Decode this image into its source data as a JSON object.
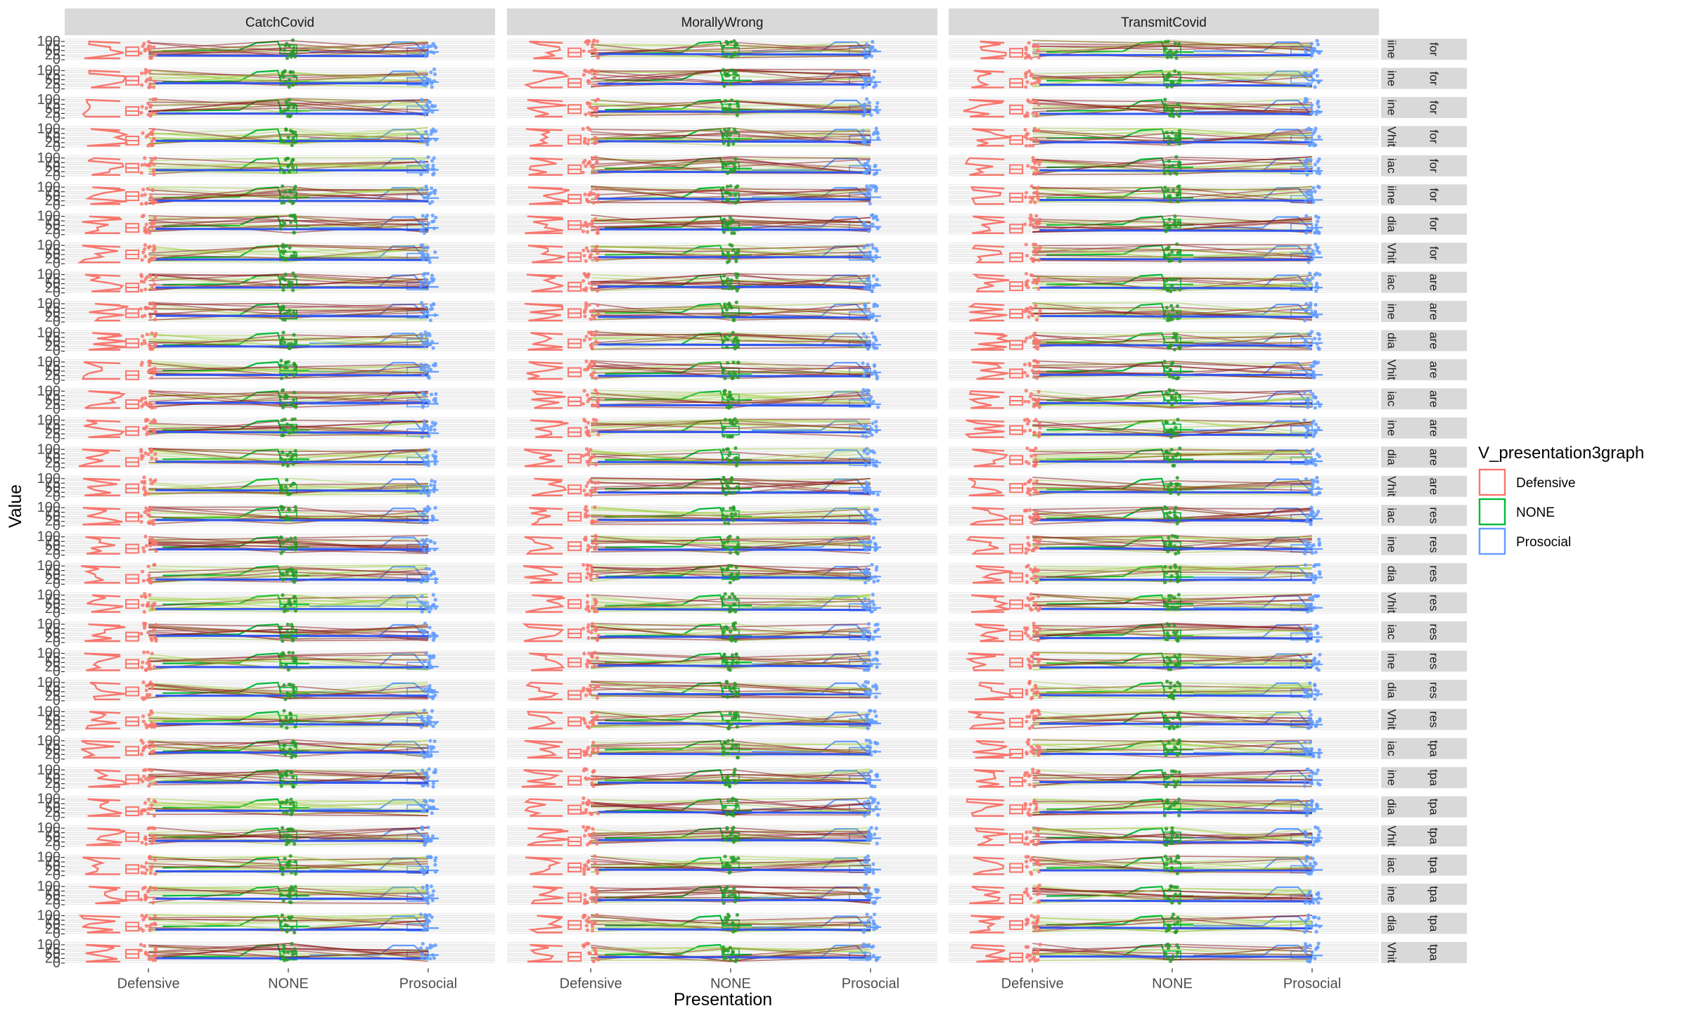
{
  "chart_data": {
    "type": "violin+box+jitter+paired-lines (faceted)",
    "facets_columns": [
      "CatchCovid",
      "MorallyWrong",
      "TransmitCovid"
    ],
    "row_count": 32,
    "row_strip_labels": [
      [
        "iine",
        "for"
      ],
      [
        "ine",
        "for"
      ],
      [
        "ine",
        "for"
      ],
      [
        "Vhit",
        "for"
      ],
      [
        "iac",
        "for"
      ],
      [
        "iine",
        "for"
      ],
      [
        "dia",
        "for"
      ],
      [
        "Vhit",
        "for"
      ],
      [
        "iac",
        "are"
      ],
      [
        "ine",
        "are"
      ],
      [
        "dia",
        "are"
      ],
      [
        "Vhit",
        "are"
      ],
      [
        "iac",
        "are"
      ],
      [
        "ine",
        "are"
      ],
      [
        "dia",
        "are"
      ],
      [
        "Vhit",
        "are"
      ],
      [
        "iac",
        "res"
      ],
      [
        "ine",
        "res"
      ],
      [
        "dia",
        "res"
      ],
      [
        "Vhit",
        "res"
      ],
      [
        "iac",
        "res"
      ],
      [
        "ine",
        "res"
      ],
      [
        "dia",
        "res"
      ],
      [
        "Vhit",
        "res"
      ],
      [
        "iac",
        "tpa"
      ],
      [
        "ine",
        "tpa"
      ],
      [
        "dia",
        "tpa"
      ],
      [
        "Vhit",
        "tpa"
      ],
      [
        "iac",
        "tpa"
      ],
      [
        "ine",
        "tpa"
      ],
      [
        "dia",
        "tpa"
      ],
      [
        "Vhit",
        "tpa"
      ]
    ],
    "categories": [
      "Defensive",
      "NONE",
      "Prosocial"
    ],
    "y_ticks": [
      "100",
      "75",
      "50",
      "25",
      "0"
    ],
    "ylim": [
      0,
      100
    ],
    "xlabel": "Presentation",
    "ylabel": "Value",
    "legend": {
      "title": "V_presentation3graph",
      "position": "right",
      "entries": [
        {
          "label": "Defensive",
          "color": "#F8766D"
        },
        {
          "label": "NONE",
          "color": "#00BA38"
        },
        {
          "label": "Prosocial",
          "color": "#619CFF"
        }
      ]
    },
    "colors": {
      "defensive": "#F8766D",
      "none": "#00BA38",
      "prosocial": "#619CFF",
      "panel_bg": "#EBEBEB",
      "strip_bg": "#D9D9D9",
      "grid": "#FFFFFF"
    }
  }
}
